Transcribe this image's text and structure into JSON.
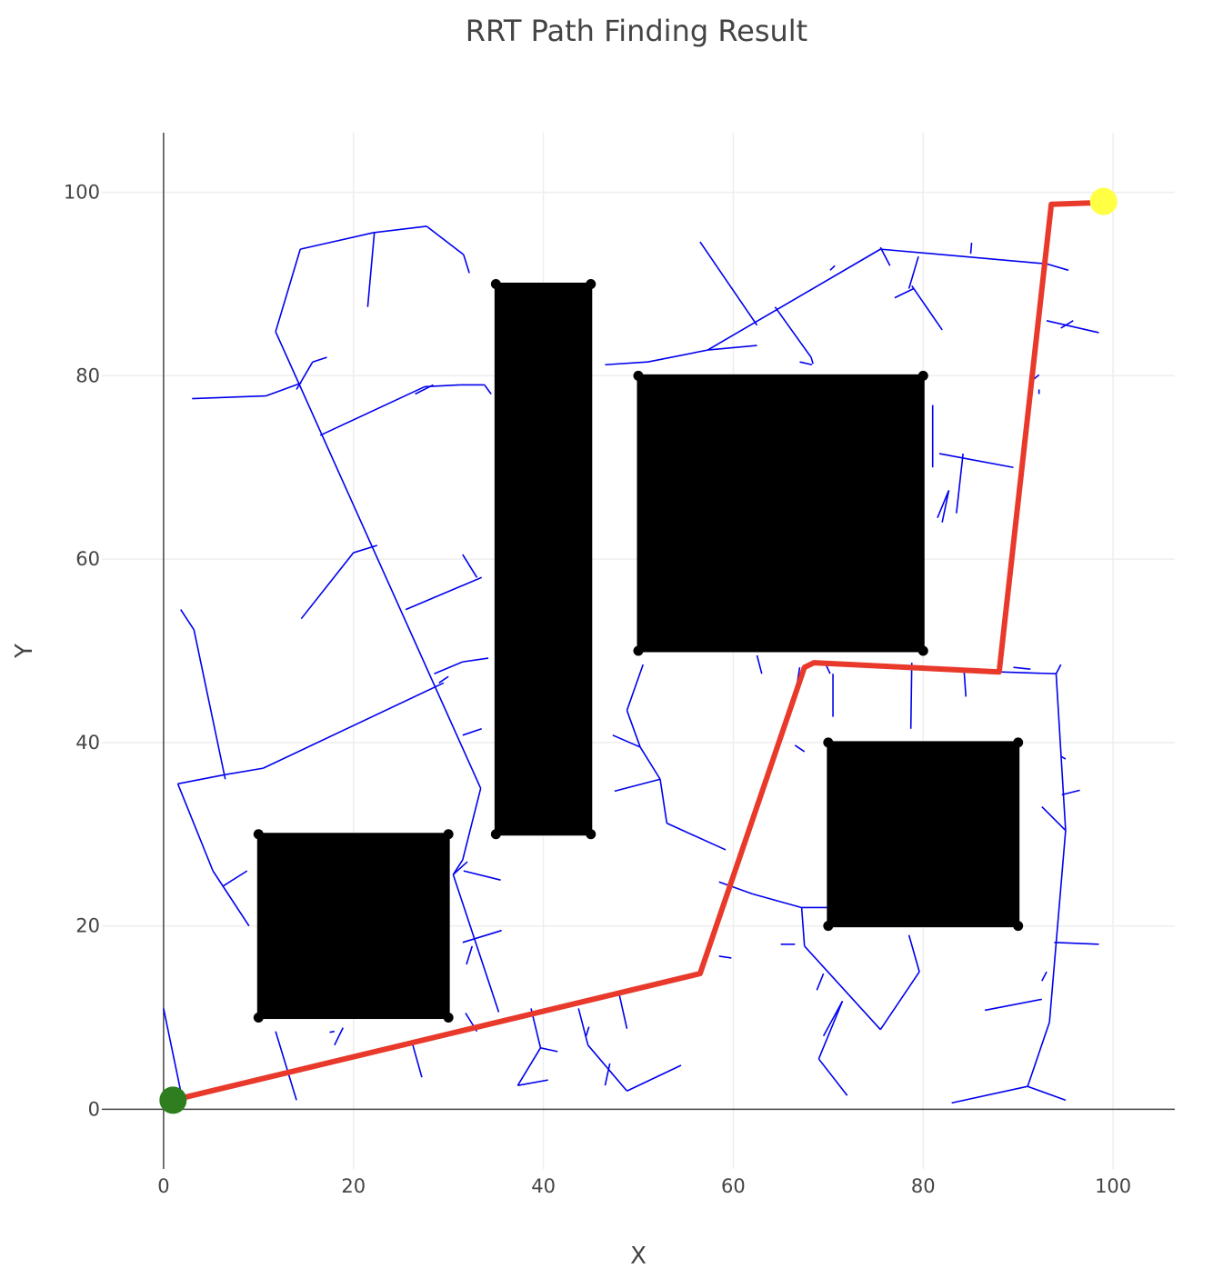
{
  "chart_data": {
    "type": "scatter",
    "title": "RRT Path Finding Result",
    "xlabel": "X",
    "ylabel": "Y",
    "xlim": [
      -6.5,
      106.5
    ],
    "ylim": [
      -6.5,
      106.5
    ],
    "xticks": [
      0,
      20,
      40,
      60,
      80,
      100
    ],
    "yticks": [
      0,
      20,
      40,
      60,
      80,
      100
    ],
    "grid": true,
    "legend": "none",
    "colors": {
      "tree": "#0000ee",
      "path": "#e8392b",
      "obstacle": "#000000",
      "start": "#2e7d1f",
      "goal": "#ffff44"
    },
    "start": [
      1,
      1
    ],
    "goal": [
      99,
      99
    ],
    "obstacles": [
      {
        "x0": 10,
        "y0": 10,
        "x1": 30,
        "y1": 30
      },
      {
        "x0": 35,
        "y0": 30,
        "x1": 45,
        "y1": 90
      },
      {
        "x0": 50,
        "y0": 50,
        "x1": 80,
        "y1": 80
      },
      {
        "x0": 70,
        "y0": 20,
        "x1": 90,
        "y1": 40
      }
    ],
    "path": [
      [
        1,
        1
      ],
      [
        56.5,
        14.8
      ],
      [
        67.5,
        48.2
      ],
      [
        68.5,
        48.7
      ],
      [
        88,
        47.7
      ],
      [
        93.5,
        98.7
      ],
      [
        99,
        98.9
      ]
    ],
    "tree_edges": [
      [
        [
          0,
          11
        ],
        [
          2,
          1
        ]
      ],
      [
        [
          1.8,
          54.5
        ],
        [
          3.2,
          52.3
        ]
      ],
      [
        [
          3.2,
          52.3
        ],
        [
          6.5,
          36
        ]
      ],
      [
        [
          1.5,
          35.5
        ],
        [
          6.5,
          36.5
        ]
      ],
      [
        [
          6.5,
          36.5
        ],
        [
          10.5,
          37.2
        ]
      ],
      [
        [
          10.5,
          37.2
        ],
        [
          29.5,
          46.5
        ]
      ],
      [
        [
          29,
          46.5
        ],
        [
          30,
          47.2
        ]
      ],
      [
        [
          1.5,
          35.5
        ],
        [
          5.2,
          26
        ]
      ],
      [
        [
          5.2,
          26
        ],
        [
          9,
          20
        ]
      ],
      [
        [
          6.2,
          24.3
        ],
        [
          8.8,
          26
        ]
      ],
      [
        [
          3,
          77.5
        ],
        [
          10.8,
          77.8
        ]
      ],
      [
        [
          10.8,
          77.8
        ],
        [
          14.5,
          79.2
        ]
      ],
      [
        [
          14,
          78.5
        ],
        [
          15.7,
          81.5
        ]
      ],
      [
        [
          15.7,
          81.5
        ],
        [
          17.2,
          82
        ]
      ],
      [
        [
          11.8,
          84.8
        ],
        [
          14.4,
          93.8
        ]
      ],
      [
        [
          14.4,
          93.8
        ],
        [
          22.1,
          95.6
        ]
      ],
      [
        [
          22.1,
          95.6
        ],
        [
          27.7,
          96.3
        ]
      ],
      [
        [
          27.7,
          96.3
        ],
        [
          31.6,
          93.2
        ]
      ],
      [
        [
          31.6,
          93.2
        ],
        [
          32.2,
          91.2
        ]
      ],
      [
        [
          22.2,
          95.6
        ],
        [
          21.5,
          87.5
        ]
      ],
      [
        [
          11.8,
          84.8
        ],
        [
          33.4,
          35
        ]
      ],
      [
        [
          33.4,
          35
        ],
        [
          31.5,
          27.2
        ]
      ],
      [
        [
          31.5,
          27.2
        ],
        [
          30.5,
          25.6
        ]
      ],
      [
        [
          30.5,
          25.6
        ],
        [
          32,
          27
        ]
      ],
      [
        [
          31.6,
          26
        ],
        [
          35.5,
          25
        ]
      ],
      [
        [
          30.5,
          25.6
        ],
        [
          35.3,
          10.6
        ]
      ],
      [
        [
          31.5,
          18.2
        ],
        [
          35.6,
          19.5
        ]
      ],
      [
        [
          31.9,
          15.8
        ],
        [
          32.5,
          17.8
        ]
      ],
      [
        [
          16.5,
          73.5
        ],
        [
          27.5,
          78.8
        ]
      ],
      [
        [
          26.5,
          78
        ],
        [
          28.4,
          79
        ]
      ],
      [
        [
          27.5,
          78.8
        ],
        [
          31.2,
          79
        ]
      ],
      [
        [
          31.2,
          79
        ],
        [
          33.8,
          79
        ]
      ],
      [
        [
          33.8,
          79
        ],
        [
          34.5,
          78
        ]
      ],
      [
        [
          14.5,
          53.5
        ],
        [
          20,
          60.7
        ]
      ],
      [
        [
          20,
          60.7
        ],
        [
          22.5,
          61.5
        ]
      ],
      [
        [
          25.5,
          54.5
        ],
        [
          33.5,
          58
        ]
      ],
      [
        [
          31.5,
          60.5
        ],
        [
          33,
          58
        ]
      ],
      [
        [
          28.5,
          47.5
        ],
        [
          31.5,
          48.8
        ]
      ],
      [
        [
          31.5,
          48.8
        ],
        [
          34.2,
          49.2
        ]
      ],
      [
        [
          31.5,
          40.8
        ],
        [
          33.5,
          41.5
        ]
      ],
      [
        [
          14,
          1
        ],
        [
          11.8,
          8.5
        ]
      ],
      [
        [
          18,
          7
        ],
        [
          18.9,
          8.9
        ]
      ],
      [
        [
          18,
          8.5
        ],
        [
          17.5,
          8.4
        ]
      ],
      [
        [
          27.2,
          3.5
        ],
        [
          26.2,
          7.2
        ]
      ],
      [
        [
          31.8,
          10.5
        ],
        [
          33,
          8.5
        ]
      ],
      [
        [
          38.7,
          11
        ],
        [
          39.7,
          6.7
        ]
      ],
      [
        [
          39.7,
          6.7
        ],
        [
          37.3,
          2.6
        ]
      ],
      [
        [
          37.3,
          2.6
        ],
        [
          40.5,
          3.2
        ]
      ],
      [
        [
          39.7,
          6.7
        ],
        [
          41.5,
          6.3
        ]
      ],
      [
        [
          43.7,
          11
        ],
        [
          44.7,
          7
        ]
      ],
      [
        [
          44.7,
          7
        ],
        [
          48.8,
          2
        ]
      ],
      [
        [
          47,
          5
        ],
        [
          46.5,
          2.6
        ]
      ],
      [
        [
          48.8,
          2
        ],
        [
          54.5,
          4.8
        ]
      ],
      [
        [
          44.5,
          8
        ],
        [
          44.8,
          9
        ]
      ],
      [
        [
          48,
          12.5
        ],
        [
          48.8,
          8.8
        ]
      ],
      [
        [
          47.3,
          40.8
        ],
        [
          50.2,
          39.5
        ]
      ],
      [
        [
          50.2,
          39.5
        ],
        [
          48.8,
          43.5
        ]
      ],
      [
        [
          48.8,
          43.5
        ],
        [
          50.5,
          48.5
        ]
      ],
      [
        [
          50.2,
          39.5
        ],
        [
          52.3,
          36
        ]
      ],
      [
        [
          52.3,
          36
        ],
        [
          53,
          31.2
        ]
      ],
      [
        [
          47.5,
          34.7
        ],
        [
          52.3,
          36
        ]
      ],
      [
        [
          53,
          31.2
        ],
        [
          59.2,
          28.3
        ]
      ],
      [
        [
          46.5,
          81.2
        ],
        [
          51,
          81.5
        ]
      ],
      [
        [
          51,
          81.5
        ],
        [
          57.3,
          82.8
        ]
      ],
      [
        [
          57.3,
          82.8
        ],
        [
          62.5,
          83.3
        ]
      ],
      [
        [
          57.3,
          82.8
        ],
        [
          75.5,
          93.8
        ]
      ],
      [
        [
          75.5,
          93.8
        ],
        [
          93,
          92.2
        ]
      ],
      [
        [
          93,
          92.2
        ],
        [
          95.3,
          91.5
        ]
      ],
      [
        [
          56.5,
          94.6
        ],
        [
          62.5,
          85.5
        ]
      ],
      [
        [
          64.4,
          87.5
        ],
        [
          68.2,
          82
        ]
      ],
      [
        [
          68.2,
          82
        ],
        [
          68.4,
          81.3
        ]
      ],
      [
        [
          67,
          81.5
        ],
        [
          68.3,
          81.2
        ]
      ],
      [
        [
          70.2,
          91.5
        ],
        [
          70.7,
          92
        ]
      ],
      [
        [
          75.5,
          94
        ],
        [
          76.5,
          92
        ]
      ],
      [
        [
          79.5,
          93
        ],
        [
          78.5,
          89.5
        ]
      ],
      [
        [
          77,
          88.5
        ],
        [
          79,
          89.5
        ]
      ],
      [
        [
          78.8,
          89.8
        ],
        [
          82,
          85
        ]
      ],
      [
        [
          85,
          93.3
        ],
        [
          85.1,
          94.5
        ]
      ],
      [
        [
          93,
          86
        ],
        [
          98.5,
          84.7
        ]
      ],
      [
        [
          94.5,
          85.2
        ],
        [
          95.8,
          86
        ]
      ],
      [
        [
          91.5,
          79.5
        ],
        [
          92.2,
          80.1
        ]
      ],
      [
        [
          92.2,
          78
        ],
        [
          92.2,
          78.5
        ]
      ],
      [
        [
          81,
          70
        ],
        [
          81,
          76.8
        ]
      ],
      [
        [
          81.7,
          71.5
        ],
        [
          89.5,
          70
        ]
      ],
      [
        [
          83.5,
          65
        ],
        [
          84.2,
          71.5
        ]
      ],
      [
        [
          82,
          64
        ],
        [
          82.7,
          67.5
        ]
      ],
      [
        [
          82.7,
          67.5
        ],
        [
          81.5,
          64.5
        ]
      ],
      [
        [
          69.8,
          48.4
        ],
        [
          70.2,
          47.5
        ]
      ],
      [
        [
          70.5,
          47.5
        ],
        [
          70.5,
          42.8
        ]
      ],
      [
        [
          78.8,
          48.7
        ],
        [
          78.7,
          41.5
        ]
      ],
      [
        [
          84.3,
          47.9
        ],
        [
          84.5,
          45
        ]
      ],
      [
        [
          67,
          48.2
        ],
        [
          66.5,
          45
        ]
      ],
      [
        [
          62.5,
          49.5
        ],
        [
          63,
          47.5
        ]
      ],
      [
        [
          68.3,
          48.7
        ],
        [
          87.8,
          47.7
        ]
      ],
      [
        [
          88,
          47.7
        ],
        [
          94,
          47.5
        ]
      ],
      [
        [
          94,
          47.5
        ],
        [
          94.5,
          48.5
        ]
      ],
      [
        [
          89.5,
          48.2
        ],
        [
          91.3,
          48
        ]
      ],
      [
        [
          94,
          47.5
        ],
        [
          95,
          30.4
        ]
      ],
      [
        [
          95,
          30.4
        ],
        [
          92.5,
          33
        ]
      ],
      [
        [
          94.6,
          34.3
        ],
        [
          96.5,
          34.8
        ]
      ],
      [
        [
          94.5,
          38.5
        ],
        [
          95,
          38.2
        ]
      ],
      [
        [
          95,
          30.4
        ],
        [
          93.3,
          9.5
        ]
      ],
      [
        [
          93.3,
          9.5
        ],
        [
          91,
          2.5
        ]
      ],
      [
        [
          91,
          2.5
        ],
        [
          95,
          1
        ]
      ],
      [
        [
          91,
          2.5
        ],
        [
          83,
          0.7
        ]
      ],
      [
        [
          92.5,
          12
        ],
        [
          86.5,
          10.8
        ]
      ],
      [
        [
          93,
          15
        ],
        [
          92.5,
          14
        ]
      ],
      [
        [
          93.8,
          18.2
        ],
        [
          98.5,
          18
        ]
      ],
      [
        [
          75.5,
          8.7
        ],
        [
          67.5,
          17.8
        ]
      ],
      [
        [
          67.5,
          17.8
        ],
        [
          67.2,
          22
        ]
      ],
      [
        [
          67.2,
          22
        ],
        [
          70.5,
          22
        ]
      ],
      [
        [
          67.2,
          22
        ],
        [
          62,
          23.5
        ]
      ],
      [
        [
          62,
          23.5
        ],
        [
          58.5,
          24.8
        ]
      ],
      [
        [
          75.5,
          8.7
        ],
        [
          79.6,
          15
        ]
      ],
      [
        [
          79.6,
          15
        ],
        [
          78.5,
          19
        ]
      ],
      [
        [
          71.5,
          11.8
        ],
        [
          69.5,
          8
        ]
      ],
      [
        [
          71.5,
          11.8
        ],
        [
          69,
          5.5
        ]
      ],
      [
        [
          69,
          5.5
        ],
        [
          72,
          1.5
        ]
      ],
      [
        [
          68.8,
          13
        ],
        [
          69.5,
          14.8
        ]
      ],
      [
        [
          65,
          18
        ],
        [
          66.5,
          18
        ]
      ],
      [
        [
          58.5,
          16.7
        ],
        [
          59.8,
          16.5
        ]
      ],
      [
        [
          66.5,
          39.7
        ],
        [
          67.5,
          39
        ]
      ]
    ]
  }
}
